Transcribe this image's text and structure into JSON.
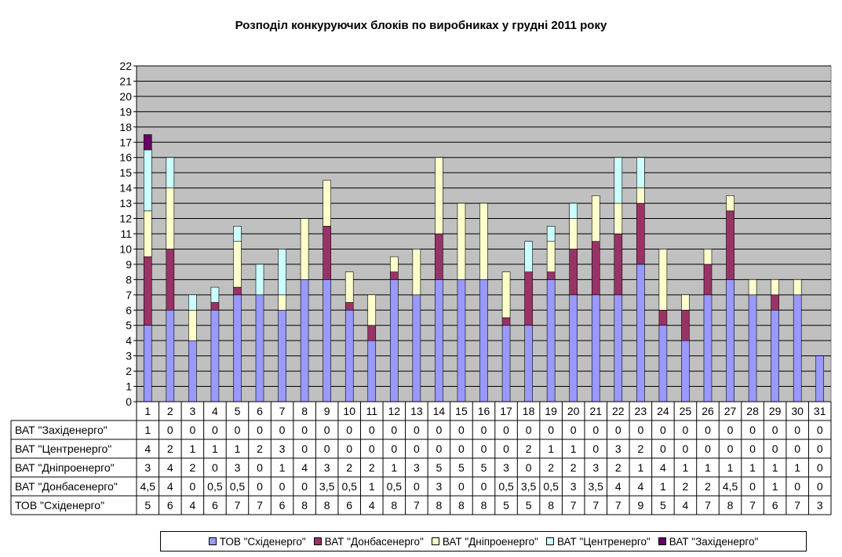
{
  "chart_data": {
    "type": "bar",
    "stacked": true,
    "title": "Розподіл конкуруючих блоків по виробниках у грудні 2011 року",
    "categories": [
      "1",
      "2",
      "3",
      "4",
      "5",
      "6",
      "7",
      "8",
      "9",
      "10",
      "11",
      "12",
      "13",
      "14",
      "15",
      "16",
      "17",
      "18",
      "19",
      "20",
      "21",
      "22",
      "23",
      "24",
      "25",
      "26",
      "27",
      "28",
      "29",
      "30",
      "31"
    ],
    "ylim": [
      0,
      22
    ],
    "yticks": [
      0,
      1,
      2,
      3,
      4,
      5,
      6,
      7,
      8,
      9,
      10,
      11,
      12,
      13,
      14,
      15,
      16,
      17,
      18,
      19,
      20,
      21,
      22
    ],
    "grid": true,
    "legend_position": "bottom",
    "series": [
      {
        "name": "ТОВ \"Східенерго\"",
        "color": "#9999ff",
        "values": [
          5,
          6,
          4,
          6,
          7,
          7,
          6,
          8,
          8,
          6,
          4,
          8,
          7,
          8,
          8,
          8,
          5,
          5,
          8,
          7,
          7,
          7,
          9,
          5,
          4,
          7,
          8,
          7,
          6,
          7,
          3
        ],
        "labels": [
          "5",
          "6",
          "4",
          "6",
          "7",
          "7",
          "6",
          "8",
          "8",
          "6",
          "4",
          "8",
          "7",
          "8",
          "8",
          "8",
          "5",
          "5",
          "8",
          "7",
          "7",
          "7",
          "9",
          "5",
          "4",
          "7",
          "8",
          "7",
          "6",
          "7",
          "3"
        ]
      },
      {
        "name": "ВАТ \"Донбасенерго\"",
        "color": "#993366",
        "values": [
          4.5,
          4,
          0,
          0.5,
          0.5,
          0,
          0,
          0,
          3.5,
          0.5,
          1,
          0.5,
          0,
          3,
          0,
          0,
          0.5,
          3.5,
          0.5,
          3,
          3.5,
          4,
          4,
          1,
          2,
          2,
          4.5,
          0,
          1,
          0,
          0
        ],
        "labels": [
          "4,5",
          "4",
          "0",
          "0,5",
          "0,5",
          "0",
          "0",
          "0",
          "3,5",
          "0,5",
          "1",
          "0,5",
          "0",
          "3",
          "0",
          "0",
          "0,5",
          "3,5",
          "0,5",
          "3",
          "3,5",
          "4",
          "4",
          "1",
          "2",
          "2",
          "4,5",
          "0",
          "1",
          "0",
          "0"
        ]
      },
      {
        "name": "ВАТ \"Дніпроенерго\"",
        "color": "#ffffcc",
        "values": [
          3,
          4,
          2,
          0,
          3,
          0,
          1,
          4,
          3,
          2,
          2,
          1,
          3,
          5,
          5,
          5,
          3,
          0,
          2,
          2,
          3,
          2,
          1,
          4,
          1,
          1,
          1,
          1,
          1,
          1,
          0
        ],
        "labels": [
          "3",
          "4",
          "2",
          "0",
          "3",
          "0",
          "1",
          "4",
          "3",
          "2",
          "2",
          "1",
          "3",
          "5",
          "5",
          "5",
          "3",
          "0",
          "2",
          "2",
          "3",
          "2",
          "1",
          "4",
          "1",
          "1",
          "1",
          "1",
          "1",
          "1",
          "0"
        ]
      },
      {
        "name": "ВАТ \"Центренерго\"",
        "color": "#ccffff",
        "values": [
          4,
          2,
          1,
          1,
          1,
          2,
          3,
          0,
          0,
          0,
          0,
          0,
          0,
          0,
          0,
          0,
          0,
          2,
          1,
          1,
          0,
          3,
          2,
          0,
          0,
          0,
          0,
          0,
          0,
          0,
          0
        ],
        "labels": [
          "4",
          "2",
          "1",
          "1",
          "1",
          "2",
          "3",
          "0",
          "0",
          "0",
          "0",
          "0",
          "0",
          "0",
          "0",
          "0",
          "0",
          "2",
          "1",
          "1",
          "0",
          "3",
          "2",
          "0",
          "0",
          "0",
          "0",
          "0",
          "0",
          "0",
          "0"
        ]
      },
      {
        "name": "ВАТ \"Західенерго\"",
        "color": "#660066",
        "values": [
          1,
          0,
          0,
          0,
          0,
          0,
          0,
          0,
          0,
          0,
          0,
          0,
          0,
          0,
          0,
          0,
          0,
          0,
          0,
          0,
          0,
          0,
          0,
          0,
          0,
          0,
          0,
          0,
          0,
          0,
          0
        ],
        "labels": [
          "1",
          "0",
          "0",
          "0",
          "0",
          "0",
          "0",
          "0",
          "0",
          "0",
          "0",
          "0",
          "0",
          "0",
          "0",
          "0",
          "0",
          "0",
          "0",
          "0",
          "0",
          "0",
          "0",
          "0",
          "0",
          "0",
          "0",
          "0",
          "0",
          "0",
          "0"
        ]
      }
    ],
    "table_row_order": [
      4,
      3,
      2,
      1,
      0
    ]
  }
}
